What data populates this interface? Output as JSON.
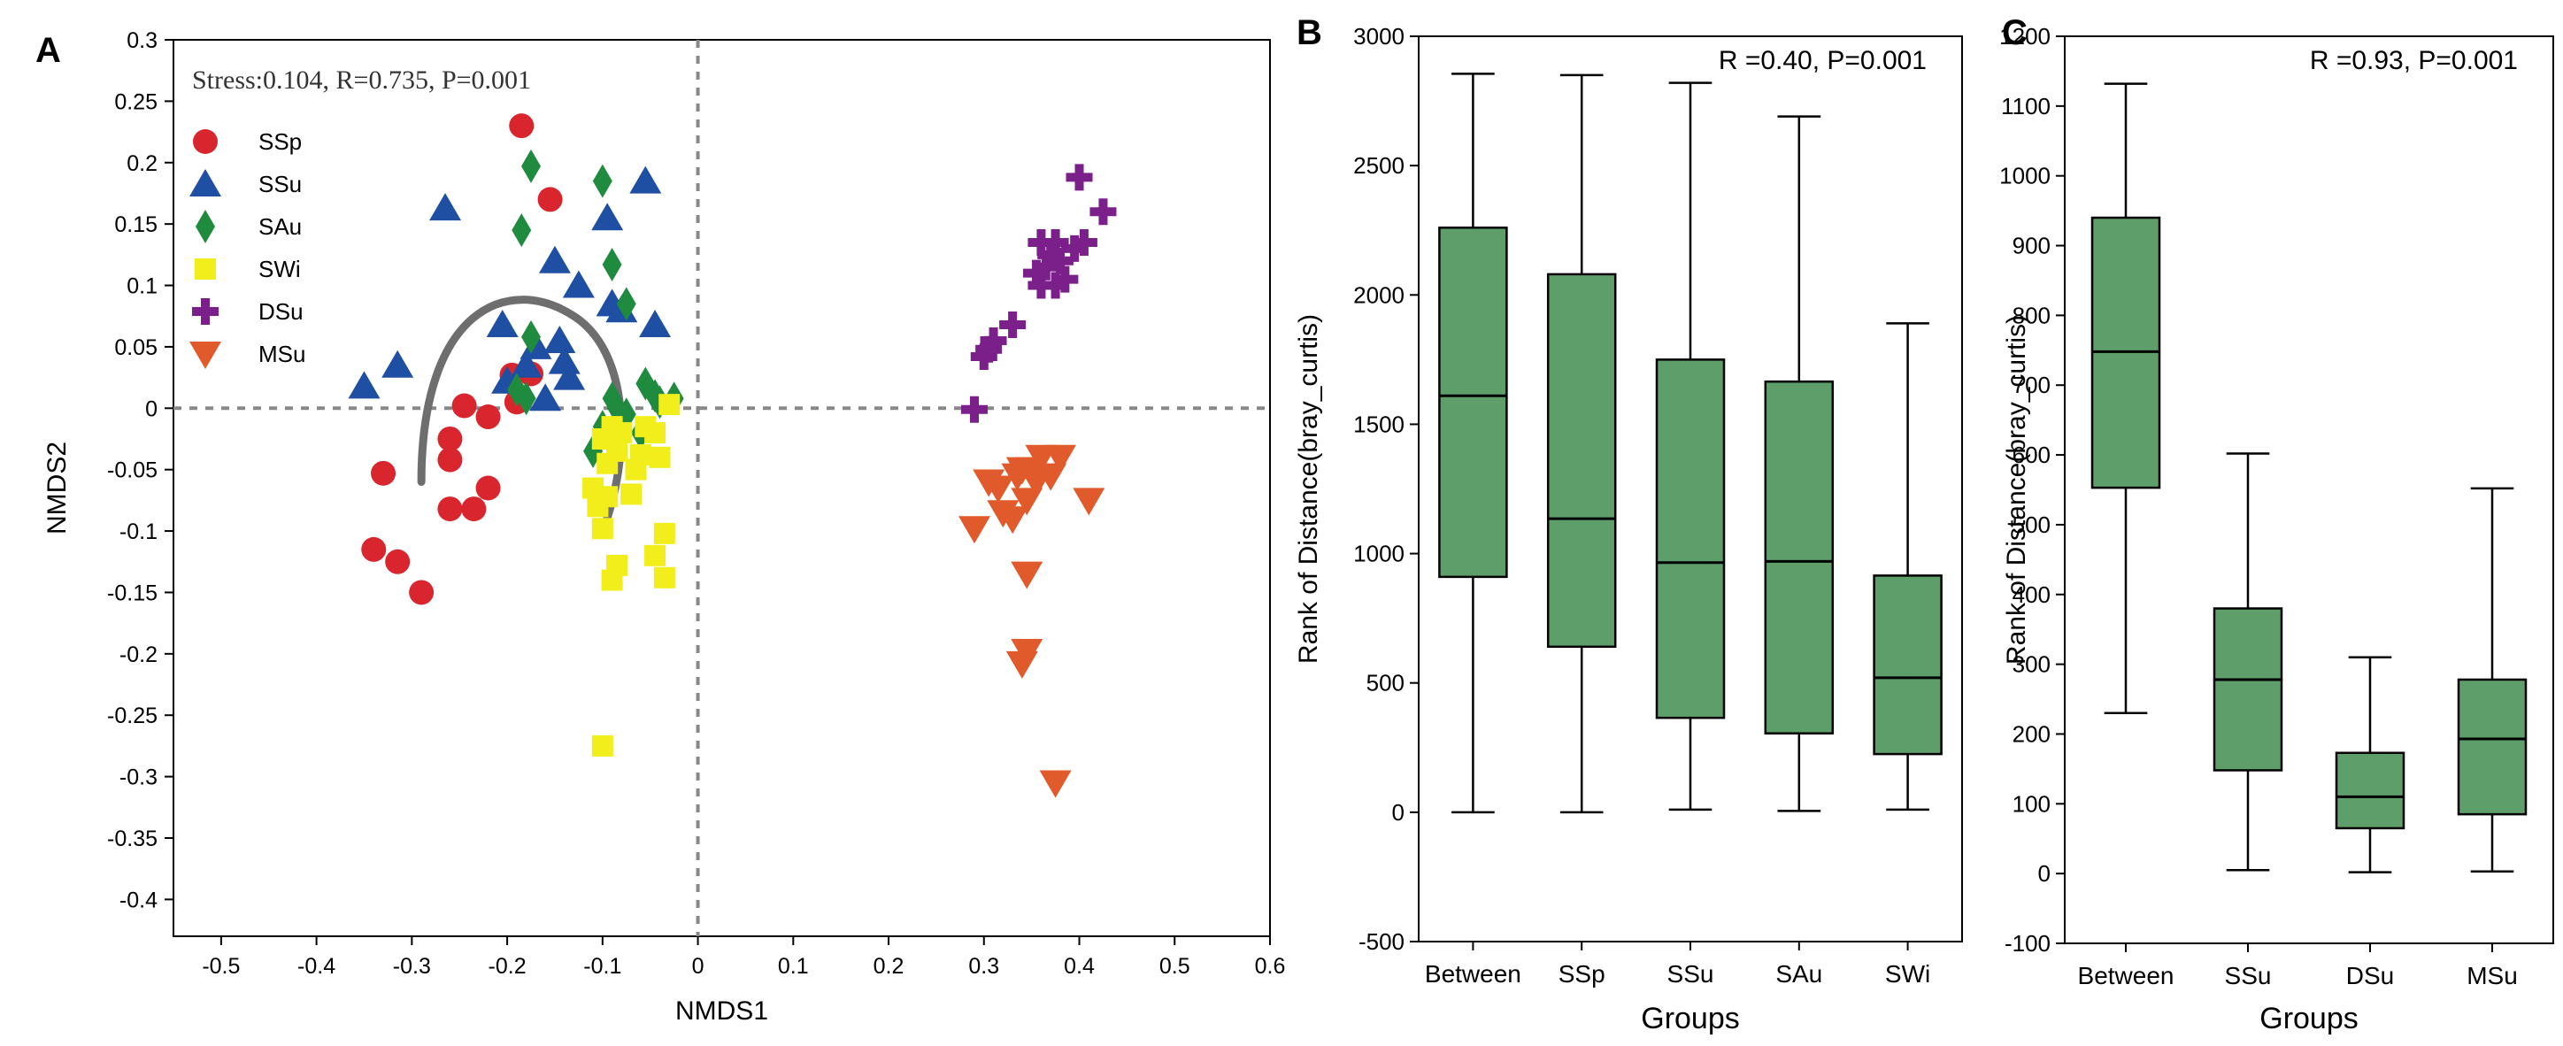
{
  "chart_data": [
    {
      "panel_label": "A",
      "type": "scatter",
      "xlabel": "NMDS1",
      "ylabel": "NMDS2",
      "xlim": [
        -0.55,
        0.6
      ],
      "ylim": [
        -0.43,
        0.3
      ],
      "xticks": [
        "-0.5",
        "-0.4",
        "-0.3",
        "-0.2",
        "-0.1",
        "0",
        "0.1",
        "0.2",
        "0.3",
        "0.4",
        "0.5",
        "0.6"
      ],
      "yticks": [
        "0.3",
        "0.25",
        "0.2",
        "0.15",
        "0.1",
        "0.05",
        "0",
        "-0.05",
        "-0.1",
        "-0.15",
        "-0.2",
        "-0.25",
        "-0.3",
        "-0.35",
        "-0.4"
      ],
      "annotation": "Stress:0.104, R=0.735, P=0.001",
      "reference_lines": [
        "x=0 dashed",
        "y=0 dashed"
      ],
      "legend_position": "top-left",
      "series": [
        {
          "name": "SSp",
          "marker": "circle",
          "color": "#d9262e",
          "points": [
            [
              -0.185,
              0.23
            ],
            [
              -0.155,
              0.17
            ],
            [
              -0.33,
              -0.053
            ],
            [
              -0.34,
              -0.115
            ],
            [
              -0.315,
              -0.125
            ],
            [
              -0.29,
              -0.15
            ],
            [
              -0.26,
              -0.025
            ],
            [
              -0.26,
              -0.042
            ],
            [
              -0.26,
              -0.082
            ],
            [
              -0.235,
              -0.082
            ],
            [
              -0.245,
              0.002
            ],
            [
              -0.22,
              -0.007
            ],
            [
              -0.22,
              -0.065
            ],
            [
              -0.195,
              0.027
            ],
            [
              -0.19,
              0.005
            ],
            [
              -0.175,
              0.028
            ]
          ]
        },
        {
          "name": "SSu",
          "marker": "triangle-up",
          "color": "#1f4fa3",
          "points": [
            [
              -0.35,
              0.018
            ],
            [
              -0.315,
              0.035
            ],
            [
              -0.265,
              0.163
            ],
            [
              -0.205,
              0.068
            ],
            [
              -0.2,
              0.022
            ],
            [
              -0.18,
              0.035
            ],
            [
              -0.17,
              0.05
            ],
            [
              -0.16,
              0.008
            ],
            [
              -0.15,
              0.12
            ],
            [
              -0.145,
              0.055
            ],
            [
              -0.14,
              0.038
            ],
            [
              -0.135,
              0.025
            ],
            [
              -0.125,
              0.1
            ],
            [
              -0.095,
              0.155
            ],
            [
              -0.09,
              0.085
            ],
            [
              -0.08,
              0.08
            ],
            [
              -0.055,
              0.185
            ],
            [
              -0.045,
              0.068
            ]
          ]
        },
        {
          "name": "SAu",
          "marker": "diamond",
          "color": "#1e8b3e",
          "points": [
            [
              -0.175,
              0.197
            ],
            [
              -0.1,
              0.185
            ],
            [
              -0.185,
              0.145
            ],
            [
              -0.09,
              0.117
            ],
            [
              -0.075,
              0.085
            ],
            [
              -0.19,
              0.015
            ],
            [
              -0.18,
              0.008
            ],
            [
              -0.175,
              0.058
            ],
            [
              -0.11,
              -0.035
            ],
            [
              -0.1,
              -0.015
            ],
            [
              -0.09,
              0.008
            ],
            [
              -0.085,
              0.0
            ],
            [
              -0.075,
              -0.005
            ],
            [
              -0.06,
              -0.02
            ],
            [
              -0.055,
              0.02
            ],
            [
              -0.04,
              0.005
            ],
            [
              -0.025,
              0.008
            ],
            [
              -0.045,
              0.01
            ]
          ]
        },
        {
          "name": "SWi",
          "marker": "square",
          "color": "#f2ee1b",
          "points": [
            [
              -0.1,
              -0.275
            ],
            [
              -0.09,
              -0.14
            ],
            [
              -0.085,
              -0.128
            ],
            [
              -0.035,
              -0.138
            ],
            [
              -0.045,
              -0.12
            ],
            [
              -0.035,
              -0.102
            ],
            [
              -0.11,
              -0.065
            ],
            [
              -0.105,
              -0.08
            ],
            [
              -0.1,
              -0.098
            ],
            [
              -0.095,
              -0.072
            ],
            [
              -0.1,
              -0.025
            ],
            [
              -0.095,
              -0.045
            ],
            [
              -0.085,
              -0.035
            ],
            [
              -0.08,
              -0.02
            ],
            [
              -0.07,
              -0.07
            ],
            [
              -0.065,
              -0.05
            ],
            [
              -0.06,
              -0.038
            ],
            [
              -0.055,
              -0.015
            ],
            [
              -0.045,
              -0.02
            ],
            [
              -0.04,
              -0.04
            ],
            [
              -0.03,
              0.003
            ],
            [
              -0.09,
              -0.015
            ]
          ]
        },
        {
          "name": "DSu",
          "marker": "plus",
          "color": "#7b1f8a",
          "points": [
            [
              0.29,
              -0.001
            ],
            [
              0.3,
              0.042
            ],
            [
              0.305,
              0.048
            ],
            [
              0.31,
              0.055
            ],
            [
              0.33,
              0.068
            ],
            [
              0.355,
              0.11
            ],
            [
              0.36,
              0.1
            ],
            [
              0.365,
              0.115
            ],
            [
              0.37,
              0.125
            ],
            [
              0.375,
              0.135
            ],
            [
              0.38,
              0.12
            ],
            [
              0.385,
              0.105
            ],
            [
              0.395,
              0.13
            ],
            [
              0.405,
              0.135
            ],
            [
              0.375,
              0.1
            ],
            [
              0.4,
              0.188
            ],
            [
              0.425,
              0.16
            ],
            [
              0.36,
              0.135
            ]
          ]
        },
        {
          "name": "MSu",
          "marker": "triangle-down",
          "color": "#e05a2b",
          "points": [
            [
              0.29,
              -0.098
            ],
            [
              0.305,
              -0.06
            ],
            [
              0.315,
              -0.065
            ],
            [
              0.32,
              -0.085
            ],
            [
              0.33,
              -0.09
            ],
            [
              0.335,
              -0.055
            ],
            [
              0.34,
              -0.05
            ],
            [
              0.345,
              -0.075
            ],
            [
              0.35,
              -0.05
            ],
            [
              0.355,
              -0.06
            ],
            [
              0.36,
              -0.04
            ],
            [
              0.37,
              -0.055
            ],
            [
              0.38,
              -0.04
            ],
            [
              0.41,
              -0.075
            ],
            [
              0.345,
              -0.135
            ],
            [
              0.345,
              -0.198
            ],
            [
              0.34,
              -0.208
            ],
            [
              0.375,
              -0.305
            ]
          ]
        }
      ]
    },
    {
      "panel_label": "B",
      "type": "box",
      "xlabel": "Groups",
      "ylabel": "Rank of Distance(bray_curtis)",
      "ylim": [
        -500,
        3000
      ],
      "yticks": [
        "3000",
        "2500",
        "2000",
        "1500",
        "1000",
        "500",
        "0",
        "-500"
      ],
      "annotation": "R =0.40, P=0.001",
      "box_color": "#5e9e6a",
      "categories": [
        "Between",
        "SSp",
        "SSu",
        "SAu",
        "SWi"
      ],
      "boxes": [
        {
          "min": 0,
          "q1": 910,
          "median": 1610,
          "q3": 2260,
          "max": 2855
        },
        {
          "min": 0,
          "q1": 640,
          "median": 1135,
          "q3": 2080,
          "max": 2850
        },
        {
          "min": 10,
          "q1": 365,
          "median": 965,
          "q3": 1750,
          "max": 2820
        },
        {
          "min": 5,
          "q1": 305,
          "median": 970,
          "q3": 1665,
          "max": 2690
        },
        {
          "min": 10,
          "q1": 225,
          "median": 520,
          "q3": 915,
          "max": 1890
        }
      ]
    },
    {
      "panel_label": "C",
      "type": "box",
      "xlabel": "Groups",
      "ylabel": "Rank of Distance(bray_curtis)",
      "ylim": [
        -100,
        1200
      ],
      "yticks": [
        "1200",
        "1100",
        "1000",
        "900",
        "800",
        "700",
        "600",
        "500",
        "400",
        "300",
        "200",
        "100",
        "0",
        "-100"
      ],
      "annotation": "R =0.93, P=0.001",
      "box_color": "#5e9e6a",
      "categories": [
        "Between",
        "SSu",
        "DSu",
        "MSu"
      ],
      "boxes": [
        {
          "min": 230,
          "q1": 553,
          "median": 748,
          "q3": 940,
          "max": 1132
        },
        {
          "min": 5,
          "q1": 148,
          "median": 278,
          "q3": 380,
          "max": 602
        },
        {
          "min": 2,
          "q1": 65,
          "median": 110,
          "q3": 173,
          "max": 310
        },
        {
          "min": 3,
          "q1": 85,
          "median": 193,
          "q3": 278,
          "max": 552
        }
      ]
    }
  ]
}
